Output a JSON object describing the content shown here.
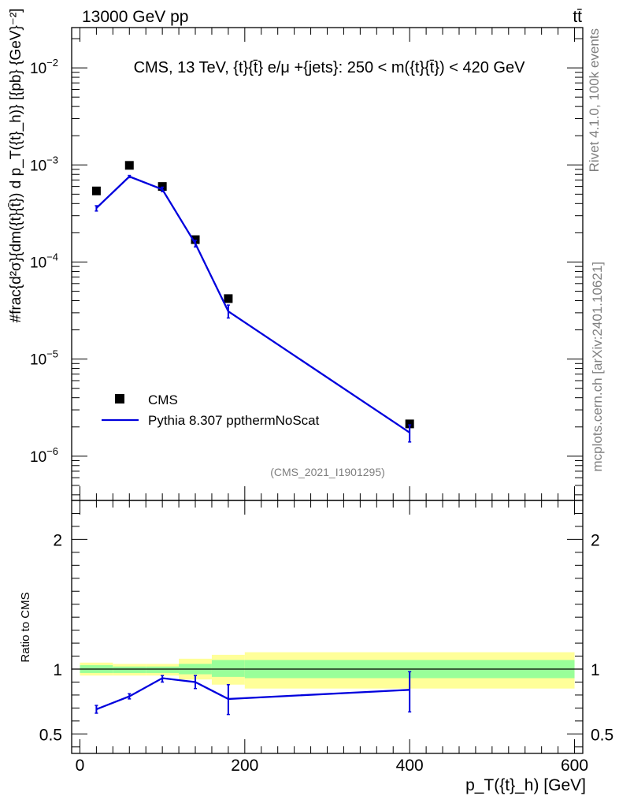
{
  "header": {
    "left": "13000 GeV pp",
    "right": "tt̄"
  },
  "side_labels": {
    "rivet": "Rivet 4.1.0,  100k events",
    "mcplots": "mcplots.cern.ch [arXiv:2401.10621]"
  },
  "chart_data": [
    {
      "type": "scatter",
      "title": "CMS, 13 TeV, {t}{t̄} e/μ +{jets}: 250 < m({t}{t̄}) < 420 GeV",
      "watermark": "(CMS_2021_I1901295)",
      "ylabel": "#frac{d²σ}{dm({t}{t̄}) d p_T({t}_h)} [{pb} {GeV}⁻²]",
      "yscale": "log",
      "ylim": [
        3.5e-07,
        0.026
      ],
      "xlim": [
        -10,
        610
      ],
      "yticks": [
        {
          "value": 1e-06,
          "base": "10",
          "exp": "−6"
        },
        {
          "value": 1e-05,
          "base": "10",
          "exp": "−5"
        },
        {
          "value": 0.0001,
          "base": "10",
          "exp": "−4"
        },
        {
          "value": 0.001,
          "base": "10",
          "exp": "−3"
        },
        {
          "value": 0.01,
          "base": "10",
          "exp": "−2"
        }
      ],
      "legend": {
        "position": "lower-left",
        "entries": [
          {
            "label": "CMS",
            "marker": "square",
            "color": "#000000"
          },
          {
            "label": "Pythia 8.307 ppthermNoScat",
            "marker": "line",
            "color": "#0000dd"
          }
        ]
      },
      "series": [
        {
          "name": "CMS",
          "color": "#000000",
          "points": [
            {
              "x": 20,
              "y": 0.00054
            },
            {
              "x": 60,
              "y": 0.00099
            },
            {
              "x": 100,
              "y": 0.0006
            },
            {
              "x": 140,
              "y": 0.00017
            },
            {
              "x": 180,
              "y": 4.2e-05
            },
            {
              "x": 400,
              "y": 2.15e-06
            }
          ]
        },
        {
          "name": "Pythia 8.307 ppthermNoScat",
          "color": "#0000dd",
          "points": [
            {
              "x": 20,
              "y": 0.00036,
              "lo": 0.000335,
              "hi": 0.00038
            },
            {
              "x": 60,
              "y": 0.00076,
              "lo": 0.00074,
              "hi": 0.00078
            },
            {
              "x": 100,
              "y": 0.00056,
              "lo": 0.00053,
              "hi": 0.00059
            },
            {
              "x": 140,
              "y": 0.000155,
              "lo": 0.000143,
              "hi": 0.000167
            },
            {
              "x": 180,
              "y": 3.1e-05,
              "lo": 2.65e-05,
              "hi": 3.6e-05
            },
            {
              "x": 400,
              "y": 1.75e-06,
              "lo": 1.4e-06,
              "hi": 2.1e-06
            }
          ]
        }
      ]
    },
    {
      "type": "line",
      "ylabel": "Ratio to CMS",
      "xlabel": "p_T({t}_h) [GeV]",
      "xlim": [
        -10,
        610
      ],
      "ylim": [
        0.35,
        2.3
      ],
      "xticks": [
        0,
        200,
        400,
        600
      ],
      "xtick_labels": [
        "0",
        "200",
        "400",
        "600"
      ],
      "yticks": [
        0.5,
        1,
        2
      ],
      "ytick_labels": [
        "0.5",
        "1",
        "2"
      ],
      "bands": [
        {
          "x0": 0,
          "x1": 40,
          "inner": [
            0.97,
            1.03
          ],
          "outer": [
            0.95,
            1.05
          ]
        },
        {
          "x0": 40,
          "x1": 80,
          "inner": [
            0.97,
            1.02
          ],
          "outer": [
            0.95,
            1.04
          ]
        },
        {
          "x0": 80,
          "x1": 120,
          "inner": [
            0.97,
            1.02
          ],
          "outer": [
            0.95,
            1.04
          ]
        },
        {
          "x0": 120,
          "x1": 160,
          "inner": [
            0.96,
            1.04
          ],
          "outer": [
            0.92,
            1.08
          ]
        },
        {
          "x0": 160,
          "x1": 200,
          "inner": [
            0.94,
            1.07
          ],
          "outer": [
            0.88,
            1.11
          ]
        },
        {
          "x0": 200,
          "x1": 600,
          "inner": [
            0.93,
            1.07
          ],
          "outer": [
            0.85,
            1.13
          ]
        }
      ],
      "band_colors": {
        "inner": "#99ff99",
        "outer": "#ffff99"
      },
      "series": [
        {
          "name": "Pythia 8.307 ppthermNoScat",
          "color": "#0000dd",
          "points": [
            {
              "x": 20,
              "y": 0.69,
              "lo": 0.66,
              "hi": 0.72
            },
            {
              "x": 60,
              "y": 0.79,
              "lo": 0.77,
              "hi": 0.81
            },
            {
              "x": 100,
              "y": 0.93,
              "lo": 0.9,
              "hi": 0.95
            },
            {
              "x": 140,
              "y": 0.9,
              "lo": 0.85,
              "hi": 0.95
            },
            {
              "x": 180,
              "y": 0.77,
              "lo": 0.65,
              "hi": 0.88
            },
            {
              "x": 400,
              "y": 0.84,
              "lo": 0.67,
              "hi": 0.98
            }
          ]
        }
      ]
    }
  ]
}
